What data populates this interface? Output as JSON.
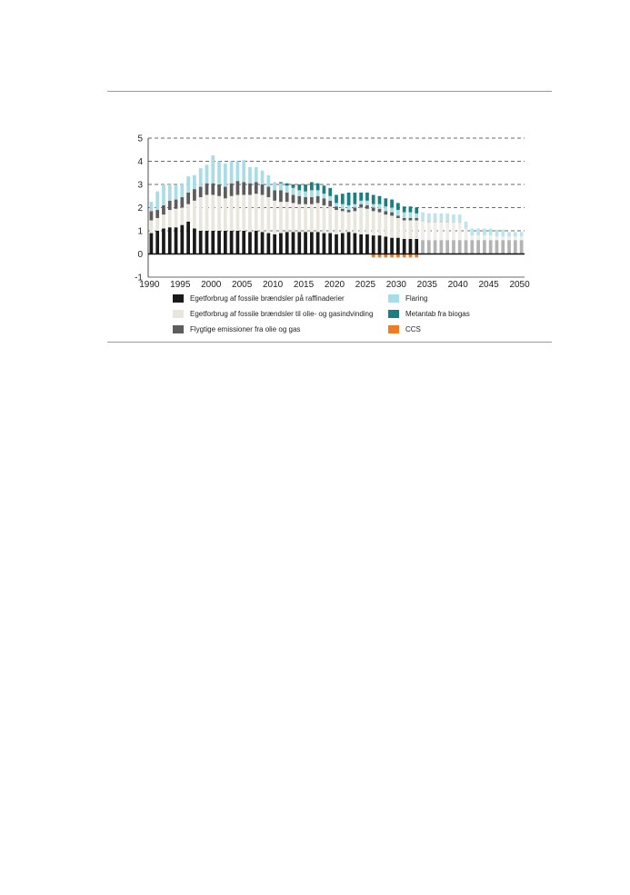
{
  "chart_data": {
    "type": "bar",
    "stacked": true,
    "title": "",
    "xlabel": "",
    "ylabel": "",
    "ylim": [
      -1,
      5
    ],
    "yticks": [
      -1,
      0,
      1,
      2,
      3,
      4,
      5
    ],
    "grid": "dashed horizontal",
    "xticks": [
      1990,
      1995,
      2000,
      2005,
      2010,
      2015,
      2020,
      2025,
      2030,
      2035,
      2040,
      2045,
      2050
    ],
    "legend_position": "bottom",
    "projection_start_year": 2034,
    "x": [
      1990,
      1991,
      1992,
      1993,
      1994,
      1995,
      1996,
      1997,
      1998,
      1999,
      2000,
      2001,
      2002,
      2003,
      2004,
      2005,
      2006,
      2007,
      2008,
      2009,
      2010,
      2011,
      2012,
      2013,
      2014,
      2015,
      2016,
      2017,
      2018,
      2019,
      2020,
      2021,
      2022,
      2023,
      2024,
      2025,
      2026,
      2027,
      2028,
      2029,
      2030,
      2031,
      2032,
      2033,
      2034,
      2035,
      2036,
      2037,
      2038,
      2039,
      2040,
      2041,
      2042,
      2043,
      2044,
      2045,
      2046,
      2047,
      2048,
      2049,
      2050
    ],
    "series": [
      {
        "name": "Egetforbrug af fossile brændsler på raffinaderier",
        "color": "#1a1a1a",
        "projection_color": "#b3b3b3",
        "values": [
          0.9,
          1.0,
          1.1,
          1.15,
          1.15,
          1.25,
          1.4,
          1.1,
          1.0,
          1.0,
          1.0,
          1.0,
          1.0,
          1.0,
          1.0,
          1.0,
          0.95,
          1.0,
          0.95,
          0.9,
          0.85,
          0.9,
          0.95,
          0.95,
          0.95,
          0.95,
          0.95,
          0.95,
          0.9,
          0.9,
          0.85,
          0.9,
          0.95,
          0.9,
          0.85,
          0.85,
          0.8,
          0.8,
          0.75,
          0.7,
          0.7,
          0.65,
          0.65,
          0.65,
          0.6,
          0.6,
          0.6,
          0.6,
          0.6,
          0.6,
          0.6,
          0.6,
          0.6,
          0.6,
          0.6,
          0.6,
          0.6,
          0.6,
          0.6,
          0.6,
          0.6
        ]
      },
      {
        "name": "Egetforbrug af fossile brændsler til olie- og gasindvinding",
        "color": "#e8e6dd",
        "projection_color": "#efeee8",
        "values": [
          0.55,
          0.55,
          0.6,
          0.75,
          0.8,
          0.75,
          0.75,
          1.2,
          1.45,
          1.55,
          1.55,
          1.5,
          1.4,
          1.5,
          1.55,
          1.55,
          1.6,
          1.6,
          1.6,
          1.55,
          1.45,
          1.35,
          1.3,
          1.25,
          1.2,
          1.2,
          1.2,
          1.25,
          1.2,
          1.15,
          1.05,
          0.95,
          0.85,
          0.95,
          1.15,
          1.1,
          1.05,
          1.0,
          0.95,
          0.95,
          0.85,
          0.8,
          0.8,
          0.8,
          0.8,
          0.75,
          0.75,
          0.75,
          0.75,
          0.75,
          0.75,
          0.5,
          0.2,
          0.2,
          0.2,
          0.2,
          0.15,
          0.15,
          0.15,
          0.15,
          0.15
        ]
      },
      {
        "name": "Flygtige emissioner fra olie og gas",
        "color": "#5d5d5d",
        "projection_color": "#d4d4d4",
        "values": [
          0.4,
          0.35,
          0.4,
          0.4,
          0.4,
          0.45,
          0.5,
          0.5,
          0.45,
          0.5,
          0.5,
          0.5,
          0.5,
          0.55,
          0.6,
          0.55,
          0.5,
          0.5,
          0.45,
          0.45,
          0.45,
          0.5,
          0.4,
          0.35,
          0.35,
          0.3,
          0.3,
          0.3,
          0.3,
          0.25,
          0.15,
          0.1,
          0.1,
          0.15,
          0.15,
          0.15,
          0.15,
          0.15,
          0.15,
          0.15,
          0.1,
          0.1,
          0.1,
          0.1,
          0.1,
          0.1,
          0.1,
          0.1,
          0.1,
          0.05,
          0.05,
          0.05,
          0,
          0,
          0,
          0,
          0,
          0,
          0,
          0,
          0
        ]
      },
      {
        "name": "Flaring",
        "color": "#a8dce6",
        "projection_color": "#bce4ec",
        "values": [
          0.4,
          0.8,
          0.9,
          0.7,
          0.6,
          0.6,
          0.7,
          0.6,
          0.8,
          0.8,
          1.2,
          1.0,
          1.0,
          0.95,
          0.85,
          0.95,
          0.7,
          0.65,
          0.6,
          0.5,
          0.35,
          0.3,
          0.3,
          0.3,
          0.25,
          0.25,
          0.3,
          0.25,
          0.2,
          0.2,
          0.15,
          0.2,
          0.2,
          0.15,
          0.15,
          0.2,
          0.15,
          0.2,
          0.2,
          0.2,
          0.25,
          0.25,
          0.25,
          0.2,
          0.3,
          0.3,
          0.3,
          0.3,
          0.3,
          0.3,
          0.3,
          0.25,
          0.3,
          0.3,
          0.3,
          0.3,
          0.3,
          0.3,
          0.2,
          0.2,
          0.2
        ]
      },
      {
        "name": "Metantab fra biogas",
        "color": "#1a7f80",
        "projection_color": "#1a7f80",
        "values": [
          0,
          0,
          0,
          0,
          0,
          0,
          0,
          0,
          0,
          0,
          0,
          0,
          0,
          0,
          0,
          0,
          0,
          0,
          0,
          0,
          0,
          0.05,
          0.1,
          0.15,
          0.25,
          0.3,
          0.35,
          0.3,
          0.35,
          0.35,
          0.35,
          0.45,
          0.55,
          0.5,
          0.35,
          0.35,
          0.4,
          0.35,
          0.35,
          0.35,
          0.3,
          0.25,
          0.25,
          0.25,
          0,
          0,
          0,
          0,
          0,
          0,
          0,
          0,
          0,
          0,
          0,
          0,
          0,
          0,
          0,
          0,
          0
        ]
      },
      {
        "name": "CCS",
        "color": "#ef7c25",
        "projection_color": "#ef7c25",
        "values": [
          0,
          0,
          0,
          0,
          0,
          0,
          0,
          0,
          0,
          0,
          0,
          0,
          0,
          0,
          0,
          0,
          0,
          0,
          0,
          0,
          0,
          0,
          0,
          0,
          0,
          0,
          0,
          0,
          0,
          0,
          0,
          0,
          0,
          0,
          0,
          0,
          -0.15,
          -0.15,
          -0.15,
          -0.15,
          -0.15,
          -0.15,
          -0.15,
          -0.15,
          0,
          0,
          0,
          0,
          0,
          0,
          0,
          0,
          0,
          0,
          0,
          0,
          0,
          0,
          0,
          0,
          0
        ]
      }
    ]
  }
}
